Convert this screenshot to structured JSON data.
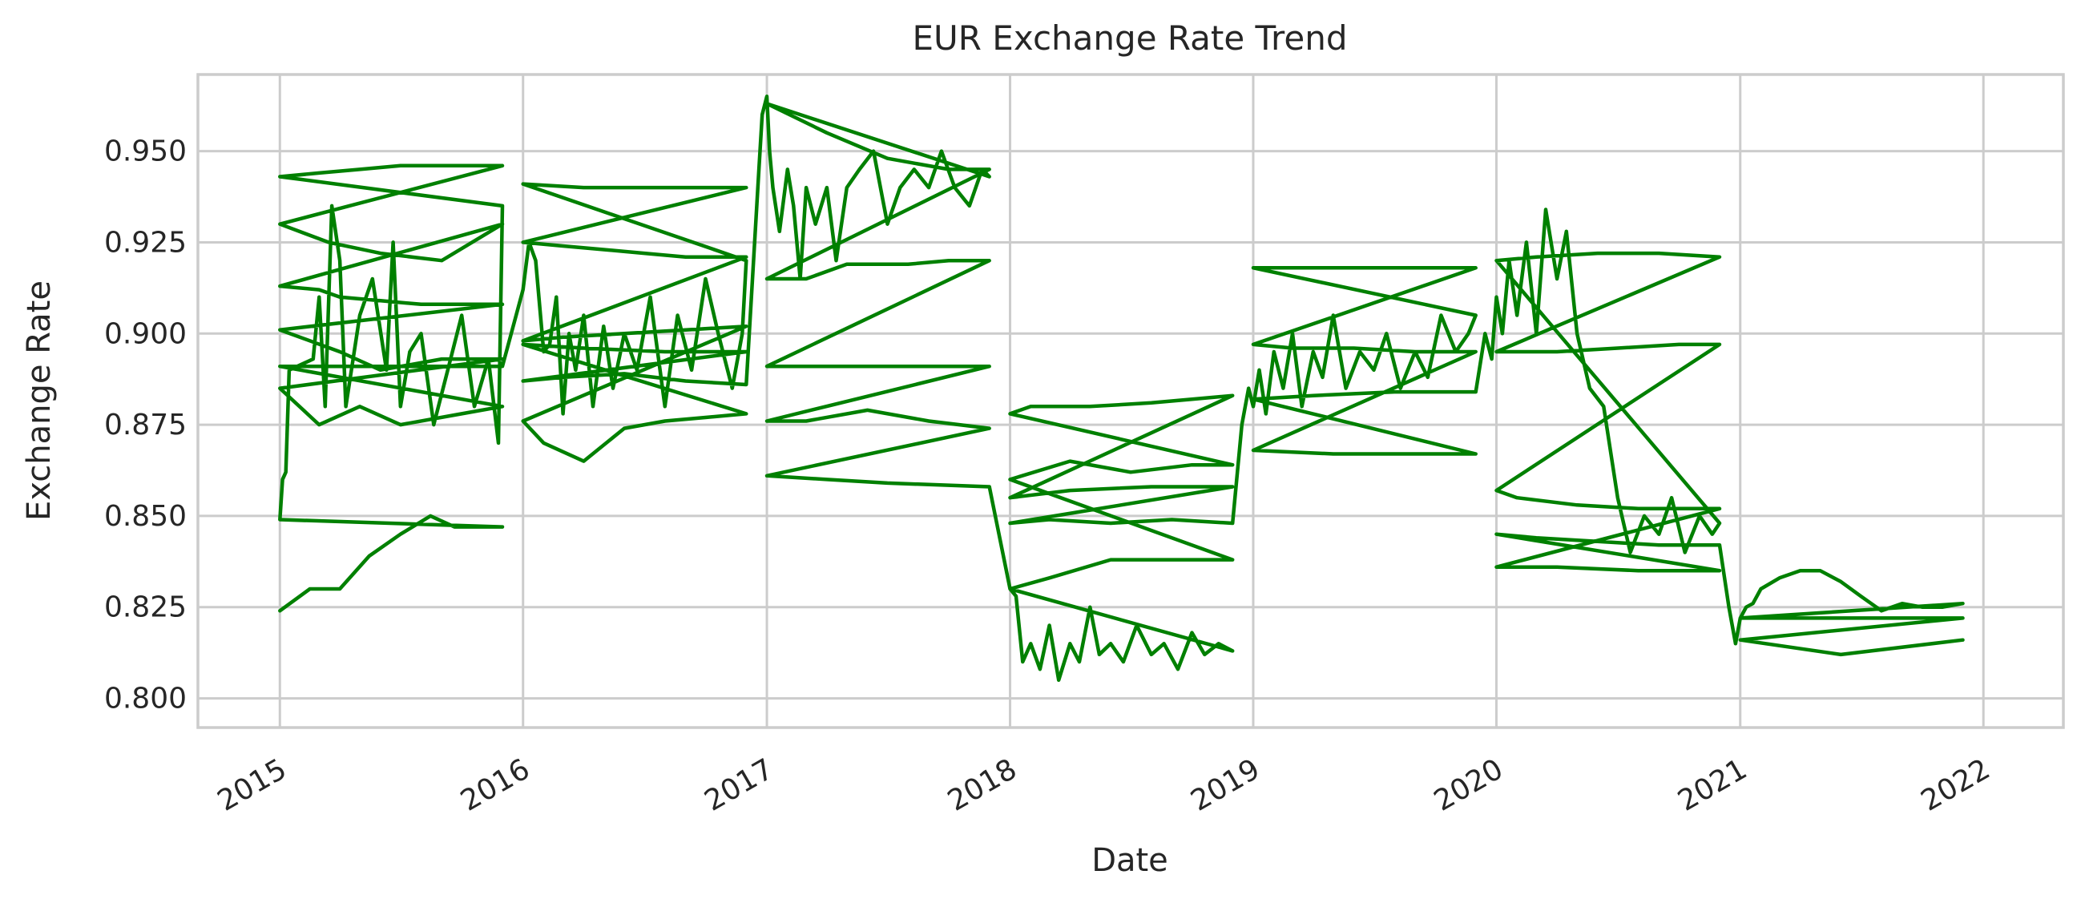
{
  "chart_data": {
    "type": "line",
    "title": "EUR Exchange Rate Trend",
    "xlabel": "Date",
    "ylabel": "Exchange Rate",
    "x_type": "date",
    "xlim": [
      "2014-08-31",
      "2022-05-01"
    ],
    "ylim": [
      0.792,
      0.971
    ],
    "x_ticks": [
      "2015-01-01",
      "2016-01-01",
      "2017-01-01",
      "2018-01-01",
      "2019-01-01",
      "2020-01-01",
      "2021-01-01",
      "2022-01-01"
    ],
    "x_tick_labels": [
      "2015",
      "2016",
      "2017",
      "2018",
      "2019",
      "2020",
      "2021",
      "2022"
    ],
    "y_ticks": [
      0.8,
      0.825,
      0.85,
      0.875,
      0.9,
      0.925,
      0.95
    ],
    "y_tick_labels": [
      "0.800",
      "0.825",
      "0.850",
      "0.875",
      "0.900",
      "0.925",
      "0.950"
    ],
    "grid": true,
    "legend": false,
    "colors": {
      "series": "#008000",
      "grid": "#cccccc",
      "text": "#262626"
    },
    "series": [
      {
        "x": [
          "2015-01-01",
          "2015-02-15",
          "2015-04-01",
          "2015-05-15",
          "2015-07-01",
          "2015-08-15",
          "2015-09-20",
          "2015-11-01",
          "2015-12-01",
          "2015-12-01",
          "2015-01-01",
          "2015-01-05",
          "2015-01-10",
          "2015-01-15",
          "2015-01-15",
          "2015-02-20",
          "2015-03-01",
          "2015-03-10",
          "2015-03-20",
          "2015-04-01",
          "2015-04-10",
          "2015-05-01",
          "2015-05-20",
          "2015-06-10",
          "2015-06-20",
          "2015-07-01",
          "2015-07-15",
          "2015-08-01",
          "2015-08-20",
          "2015-09-10",
          "2015-10-01",
          "2015-10-20",
          "2015-11-10",
          "2015-11-25",
          "2015-12-01",
          "2015-12-01",
          "2015-01-01",
          "2015-03-01",
          "2015-05-01",
          "2015-07-01",
          "2015-09-01",
          "2015-12-01",
          "2015-12-01",
          "2015-01-01",
          "2015-03-15",
          "2015-06-01",
          "2015-09-01",
          "2015-12-01",
          "2015-12-01",
          "2015-01-01",
          "2015-03-01",
          "2015-04-01",
          "2015-06-01",
          "2015-08-01",
          "2015-10-01",
          "2015-12-01",
          "2015-12-01",
          "2015-01-01",
          "2015-04-01",
          "2015-06-01",
          "2015-09-01",
          "2015-12-01",
          "2015-12-01",
          "2015-01-01",
          "2015-03-01",
          "2015-05-01",
          "2015-07-01",
          "2015-10-01",
          "2015-12-01",
          "2015-12-01",
          "2015-01-01",
          "2015-12-01",
          "2016-01-01",
          "2016-01-05",
          "2016-01-10",
          "2016-01-20",
          "2016-02-01",
          "2016-02-10",
          "2016-02-20",
          "2016-03-01",
          "2016-03-10",
          "2016-03-20",
          "2016-04-01",
          "2016-04-15",
          "2016-05-01",
          "2016-05-15",
          "2016-06-01",
          "2016-06-20",
          "2016-07-10",
          "2016-08-01",
          "2016-08-20",
          "2016-09-10",
          "2016-10-01",
          "2016-10-20",
          "2016-11-10",
          "2016-11-25",
          "2016-12-01",
          "2016-12-01",
          "2016-01-01",
          "2016-04-01",
          "2016-07-01",
          "2016-10-01",
          "2016-12-01",
          "2016-12-01",
          "2016-01-01",
          "2016-03-01",
          "2016-05-01",
          "2016-07-01",
          "2016-09-01",
          "2016-12-01",
          "2016-12-01",
          "2016-01-01",
          "2016-03-01",
          "2016-06-01",
          "2016-09-01",
          "2016-12-01",
          "2016-12-01",
          "2016-01-01",
          "2016-02-01",
          "2016-04-01",
          "2016-06-01",
          "2016-08-01",
          "2016-10-01",
          "2016-12-01",
          "2016-12-01",
          "2016-01-01",
          "2016-04-01",
          "2016-08-01",
          "2016-12-01",
          "2016-12-01",
          "2016-01-01",
          "2016-03-01",
          "2016-06-01",
          "2016-09-01",
          "2016-12-01",
          "2016-12-20",
          "2016-12-25",
          "2017-01-01",
          "2017-01-05",
          "2017-01-10",
          "2017-01-20",
          "2017-02-01",
          "2017-02-10",
          "2017-02-20",
          "2017-03-01",
          "2017-03-15",
          "2017-04-01",
          "2017-04-15",
          "2017-05-01",
          "2017-05-20",
          "2017-06-10",
          "2017-07-01",
          "2017-07-20",
          "2017-08-10",
          "2017-09-01",
          "2017-09-20",
          "2017-10-10",
          "2017-11-01",
          "2017-11-20",
          "2017-12-01",
          "2017-12-01",
          "2017-01-01",
          "2017-04-01",
          "2017-07-01",
          "2017-10-01",
          "2017-12-01",
          "2017-12-01",
          "2017-01-01",
          "2017-03-01",
          "2017-05-01",
          "2017-08-01",
          "2017-10-01",
          "2017-12-01",
          "2017-12-01",
          "2017-01-01",
          "2017-04-01",
          "2017-07-01",
          "2017-10-01",
          "2017-12-01",
          "2017-12-01",
          "2017-01-01",
          "2017-03-01",
          "2017-06-01",
          "2017-09-01",
          "2017-12-01",
          "2017-12-01",
          "2017-01-01",
          "2017-04-01",
          "2017-07-01",
          "2017-12-01",
          "2018-01-01",
          "2018-01-10",
          "2018-01-20",
          "2018-02-01",
          "2018-02-15",
          "2018-03-01",
          "2018-03-15",
          "2018-04-01",
          "2018-04-15",
          "2018-05-01",
          "2018-05-15",
          "2018-06-01",
          "2018-06-20",
          "2018-07-10",
          "2018-08-01",
          "2018-08-20",
          "2018-09-10",
          "2018-10-01",
          "2018-10-20",
          "2018-11-10",
          "2018-12-01",
          "2018-12-01",
          "2018-01-01",
          "2018-03-01",
          "2018-06-01",
          "2018-09-01",
          "2018-12-01",
          "2018-12-01",
          "2018-01-01",
          "2018-04-01",
          "2018-07-01",
          "2018-10-01",
          "2018-12-01",
          "2018-12-01",
          "2018-01-01",
          "2018-02-01",
          "2018-05-01",
          "2018-08-01",
          "2018-10-01",
          "2018-12-01",
          "2018-12-01",
          "2018-01-01",
          "2018-04-01",
          "2018-08-01",
          "2018-12-01",
          "2018-12-01",
          "2018-01-01",
          "2018-03-01",
          "2018-06-01",
          "2018-09-01",
          "2018-12-01",
          "2018-12-15",
          "2018-12-25",
          "2019-01-01",
          "2019-01-10",
          "2019-01-20",
          "2019-02-01",
          "2019-02-15",
          "2019-03-01",
          "2019-03-15",
          "2019-04-01",
          "2019-04-15",
          "2019-05-01",
          "2019-05-20",
          "2019-06-10",
          "2019-07-01",
          "2019-07-20",
          "2019-08-10",
          "2019-09-01",
          "2019-09-20",
          "2019-10-10",
          "2019-11-01",
          "2019-11-20",
          "2019-12-01",
          "2019-12-01",
          "2019-01-01",
          "2019-04-01",
          "2019-07-01",
          "2019-10-01",
          "2019-12-01",
          "2019-12-01",
          "2019-01-01",
          "2019-03-01",
          "2019-06-01",
          "2019-09-01",
          "2019-12-01",
          "2019-12-01",
          "2019-01-01",
          "2019-05-01",
          "2019-08-01",
          "2019-12-01",
          "2019-12-01",
          "2019-01-01",
          "2019-04-01",
          "2019-08-01",
          "2019-12-01",
          "2019-12-15",
          "2019-12-25",
          "2020-01-01",
          "2020-01-10",
          "2020-01-20",
          "2020-02-01",
          "2020-02-15",
          "2020-03-01",
          "2020-03-15",
          "2020-04-01",
          "2020-04-15",
          "2020-05-01",
          "2020-05-20",
          "2020-06-10",
          "2020-07-01",
          "2020-07-20",
          "2020-08-10",
          "2020-09-01",
          "2020-09-20",
          "2020-10-10",
          "2020-11-01",
          "2020-11-20",
          "2020-12-01",
          "2020-12-01",
          "2020-01-01",
          "2020-03-01",
          "2020-06-01",
          "2020-09-01",
          "2020-12-01",
          "2020-12-01",
          "2020-01-01",
          "2020-04-01",
          "2020-07-01",
          "2020-10-01",
          "2020-12-01",
          "2020-12-01",
          "2020-01-01",
          "2020-02-01",
          "2020-05-01",
          "2020-08-01",
          "2020-10-01",
          "2020-12-01",
          "2020-12-01",
          "2020-01-01",
          "2020-04-01",
          "2020-08-01",
          "2020-12-01",
          "2020-12-01",
          "2020-01-01",
          "2020-03-01",
          "2020-06-01",
          "2020-09-01",
          "2020-12-01",
          "2020-12-15",
          "2020-12-25",
          "2021-01-01",
          "2021-01-10",
          "2021-01-20",
          "2021-02-01",
          "2021-03-01",
          "2021-04-01",
          "2021-05-01",
          "2021-06-01",
          "2021-07-01",
          "2021-08-01",
          "2021-09-01",
          "2021-10-01",
          "2021-11-01",
          "2021-12-01",
          "2021-12-01",
          "2021-01-01",
          "2021-04-01",
          "2021-07-01",
          "2021-10-01",
          "2021-12-01",
          "2021-12-01",
          "2021-01-01",
          "2021-06-01",
          "2021-12-01"
        ],
        "y": [
          0.824,
          0.83,
          0.83,
          0.839,
          0.845,
          0.85,
          0.847,
          0.847,
          0.847,
          0.847,
          0.849,
          0.86,
          0.862,
          0.89,
          0.89,
          0.893,
          0.91,
          0.88,
          0.935,
          0.92,
          0.88,
          0.905,
          0.915,
          0.89,
          0.925,
          0.88,
          0.895,
          0.9,
          0.875,
          0.89,
          0.905,
          0.88,
          0.893,
          0.87,
          0.935,
          0.935,
          0.943,
          0.944,
          0.945,
          0.946,
          0.946,
          0.946,
          0.946,
          0.93,
          0.925,
          0.922,
          0.92,
          0.93,
          0.93,
          0.913,
          0.912,
          0.91,
          0.909,
          0.908,
          0.908,
          0.908,
          0.908,
          0.901,
          0.895,
          0.89,
          0.893,
          0.893,
          0.893,
          0.885,
          0.875,
          0.88,
          0.875,
          0.878,
          0.88,
          0.88,
          0.891,
          0.891,
          0.912,
          0.918,
          0.925,
          0.92,
          0.895,
          0.897,
          0.91,
          0.878,
          0.9,
          0.89,
          0.905,
          0.88,
          0.902,
          0.885,
          0.9,
          0.89,
          0.91,
          0.88,
          0.905,
          0.89,
          0.915,
          0.9,
          0.885,
          0.9,
          0.92,
          0.92,
          0.941,
          0.94,
          0.94,
          0.94,
          0.94,
          0.94,
          0.925,
          0.924,
          0.923,
          0.922,
          0.921,
          0.921,
          0.921,
          0.898,
          0.899,
          0.9,
          0.901,
          0.902,
          0.902,
          0.876,
          0.87,
          0.865,
          0.874,
          0.876,
          0.877,
          0.878,
          0.878,
          0.897,
          0.896,
          0.895,
          0.895,
          0.895,
          0.887,
          0.888,
          0.889,
          0.887,
          0.886,
          0.945,
          0.96,
          0.965,
          0.95,
          0.94,
          0.928,
          0.945,
          0.935,
          0.915,
          0.94,
          0.93,
          0.94,
          0.92,
          0.94,
          0.945,
          0.95,
          0.93,
          0.94,
          0.945,
          0.94,
          0.95,
          0.94,
          0.935,
          0.945,
          0.943,
          0.943,
          0.963,
          0.955,
          0.948,
          0.945,
          0.945,
          0.945,
          0.915,
          0.915,
          0.919,
          0.919,
          0.92,
          0.92,
          0.92,
          0.891,
          0.891,
          0.891,
          0.891,
          0.891,
          0.891,
          0.876,
          0.876,
          0.879,
          0.876,
          0.874,
          0.874,
          0.861,
          0.86,
          0.859,
          0.858,
          0.83,
          0.828,
          0.81,
          0.815,
          0.808,
          0.82,
          0.805,
          0.815,
          0.81,
          0.825,
          0.812,
          0.815,
          0.81,
          0.82,
          0.812,
          0.815,
          0.808,
          0.818,
          0.812,
          0.815,
          0.813,
          0.813,
          0.83,
          0.833,
          0.838,
          0.838,
          0.838,
          0.838,
          0.86,
          0.865,
          0.862,
          0.864,
          0.864,
          0.864,
          0.878,
          0.88,
          0.88,
          0.881,
          0.882,
          0.883,
          0.883,
          0.855,
          0.857,
          0.858,
          0.858,
          0.858,
          0.848,
          0.849,
          0.848,
          0.849,
          0.848,
          0.875,
          0.885,
          0.88,
          0.89,
          0.878,
          0.895,
          0.885,
          0.9,
          0.88,
          0.895,
          0.888,
          0.905,
          0.885,
          0.895,
          0.89,
          0.9,
          0.885,
          0.895,
          0.888,
          0.905,
          0.895,
          0.9,
          0.905,
          0.905,
          0.918,
          0.918,
          0.918,
          0.918,
          0.918,
          0.918,
          0.897,
          0.896,
          0.896,
          0.895,
          0.895,
          0.895,
          0.868,
          0.867,
          0.867,
          0.867,
          0.867,
          0.882,
          0.883,
          0.884,
          0.884,
          0.9,
          0.893,
          0.91,
          0.9,
          0.92,
          0.905,
          0.925,
          0.9,
          0.934,
          0.915,
          0.928,
          0.9,
          0.885,
          0.88,
          0.855,
          0.84,
          0.85,
          0.845,
          0.855,
          0.84,
          0.85,
          0.845,
          0.848,
          0.848,
          0.92,
          0.921,
          0.922,
          0.922,
          0.921,
          0.921,
          0.895,
          0.895,
          0.896,
          0.897,
          0.897,
          0.897,
          0.857,
          0.855,
          0.853,
          0.852,
          0.852,
          0.852,
          0.852,
          0.836,
          0.836,
          0.835,
          0.835,
          0.835,
          0.845,
          0.844,
          0.843,
          0.842,
          0.842,
          0.825,
          0.815,
          0.822,
          0.825,
          0.826,
          0.83,
          0.833,
          0.835,
          0.835,
          0.832,
          0.828,
          0.824,
          0.826,
          0.825,
          0.825,
          0.826,
          0.826,
          0.822,
          0.822,
          0.822,
          0.822,
          0.822,
          0.822,
          0.816,
          0.812,
          0.816
        ]
      }
    ]
  }
}
